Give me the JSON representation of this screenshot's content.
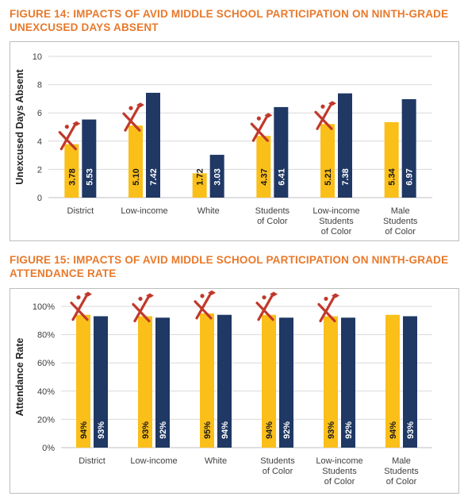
{
  "chart_data": [
    {
      "type": "bar",
      "title": "FIGURE 14: IMPACTS OF AVID MIDDLE SCHOOL PARTICIPATION ON NINTH-GRADE UNEXCUSED DAYS ABSENT",
      "ylabel": "Unexcused Days Absent",
      "xlabel": "",
      "ylim": [
        0,
        10
      ],
      "yticks": [
        "0",
        "2",
        "4",
        "6",
        "8",
        "10"
      ],
      "grid": true,
      "categories": [
        "District",
        "Low-income",
        "White",
        "Students of Color",
        "Low-income Students of Color",
        "Male Students of Color"
      ],
      "category_lines": [
        [
          "District"
        ],
        [
          "Low-income"
        ],
        [
          "White"
        ],
        [
          "Students",
          "of Color"
        ],
        [
          "Low-income",
          "Students",
          "of Color"
        ],
        [
          "Male",
          "Students",
          "of Color"
        ]
      ],
      "series": [
        {
          "values": [
            3.78,
            5.1,
            1.72,
            4.37,
            5.21,
            5.34
          ],
          "labels": [
            "3.78",
            "5.10",
            "1.72",
            "4.37",
            "5.21",
            "5.34"
          ],
          "color": "#fbbf1a"
        },
        {
          "values": [
            5.53,
            7.42,
            3.03,
            6.41,
            7.38,
            6.97
          ],
          "labels": [
            "5.53",
            "7.42",
            "3.03",
            "6.41",
            "7.38",
            "6.97"
          ],
          "color": "#1f3864"
        }
      ],
      "icon": "avid-graduate-icon",
      "icon_categories": [
        0,
        1,
        3,
        4
      ],
      "icon_color": "#c0392b"
    },
    {
      "type": "bar",
      "title": "FIGURE 15: IMPACTS OF AVID MIDDLE SCHOOL PARTICIPATION ON NINTH-GRADE ATTENDANCE RATE",
      "ylabel": "Attendance Rate",
      "xlabel": "",
      "ylim": [
        0,
        100
      ],
      "yticks": [
        "0%",
        "20%",
        "40%",
        "60%",
        "80%",
        "100%"
      ],
      "grid": true,
      "categories": [
        "District",
        "Low-income",
        "White",
        "Students of Color",
        "Low-income Students of Color",
        "Male Students of Color"
      ],
      "category_lines": [
        [
          "District"
        ],
        [
          "Low-income"
        ],
        [
          "White"
        ],
        [
          "Students",
          "of Color"
        ],
        [
          "Low-income",
          "Students",
          "of Color"
        ],
        [
          "Male",
          "Students",
          "of Color"
        ]
      ],
      "series": [
        {
          "values": [
            94,
            93,
            95,
            94,
            93,
            94
          ],
          "labels": [
            "94%",
            "93%",
            "95%",
            "94%",
            "93%",
            "94%"
          ],
          "color": "#fbbf1a"
        },
        {
          "values": [
            93,
            92,
            94,
            92,
            92,
            93
          ],
          "labels": [
            "93%",
            "92%",
            "94%",
            "92%",
            "92%",
            "93%"
          ],
          "color": "#1f3864"
        }
      ],
      "icon": "avid-graduate-icon",
      "icon_categories": [
        0,
        1,
        2,
        3,
        4
      ],
      "icon_color": "#c0392b"
    }
  ]
}
